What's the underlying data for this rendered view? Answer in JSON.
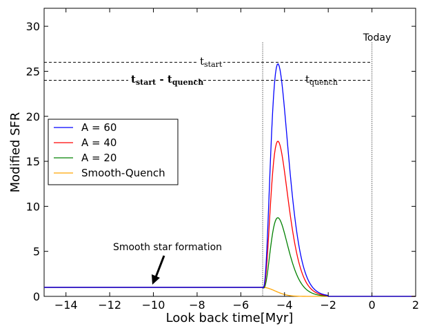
{
  "chart_data": {
    "type": "line",
    "xlabel": "Look back time[Myr]",
    "ylabel": "Modified SFR",
    "xlim": [
      -15,
      2
    ],
    "ylim": [
      0,
      32
    ],
    "xticks": [
      -14,
      -12,
      -10,
      -8,
      -6,
      -4,
      -2,
      0,
      2
    ],
    "yticks": [
      0,
      5,
      10,
      15,
      20,
      25,
      30
    ],
    "xtick_labels": [
      "−14",
      "−12",
      "−10",
      "−8",
      "−6",
      "−4",
      "−2",
      "0",
      "2"
    ],
    "ytick_labels": [
      "0",
      "5",
      "10",
      "15",
      "20",
      "25",
      "30"
    ],
    "grid": false,
    "legend_position": "middle-left",
    "baseline_sfr": 1.0,
    "burst_start": -5.0,
    "burst_end": -2.0,
    "burst_peak_time": -4.3,
    "series": [
      {
        "name": "A = 60",
        "color": "#0000ff",
        "peak": 25.7
      },
      {
        "name": "A = 40",
        "color": "#ff0000",
        "peak": 17.1
      },
      {
        "name": "A = 20",
        "color": "#008000",
        "peak": 8.6
      },
      {
        "name": "Smooth-Quench",
        "color": "#ffa500",
        "peak": 0
      }
    ],
    "vertical_lines": [
      {
        "x": -5.0,
        "style": "dotted"
      },
      {
        "x": 0,
        "style": "dotted",
        "label": "Today"
      }
    ],
    "horizontal_lines": [
      {
        "y": 26,
        "x_from": -15,
        "x_to": 0,
        "style": "dashed"
      },
      {
        "y": 24,
        "x_from": -15,
        "x_to": 0,
        "style": "dashed"
      }
    ],
    "annotations": {
      "t_start": {
        "main": "t",
        "sub": "start"
      },
      "t_start_minus_t_quench": {
        "t1": "t",
        "sub1": "start",
        "mid": " - t",
        "sub2": "quench"
      },
      "t_quench": {
        "main": "t",
        "sub": "quench"
      },
      "arrow_label": "Smooth star formation",
      "today_label": "Today"
    }
  }
}
